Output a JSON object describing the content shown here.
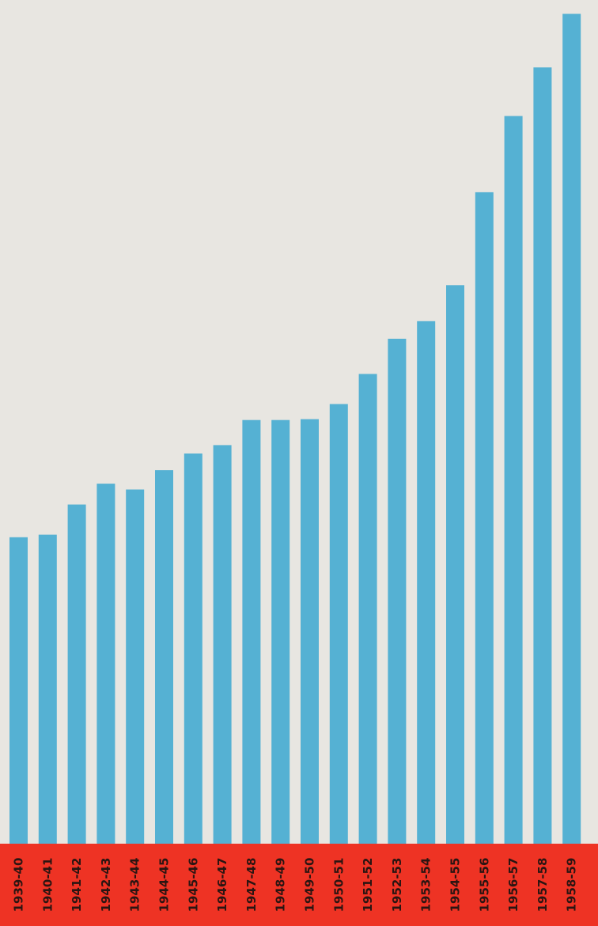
{
  "chart_data": {
    "type": "bar",
    "categories": [
      "1939-40",
      "1940-41",
      "1941-42",
      "1942-43",
      "1943-44",
      "1944-45",
      "1945-46",
      "1946-47",
      "1947-48",
      "1948-49",
      "1949-50",
      "1950-51",
      "1951-52",
      "1952-53",
      "1953-54",
      "1954-55",
      "1955-56",
      "1956-57",
      "1957-58",
      "1958-59"
    ],
    "values": [
      36.6,
      36.9,
      40.5,
      43.0,
      42.3,
      44.6,
      46.6,
      47.6,
      50.6,
      50.6,
      50.7,
      52.5,
      56.1,
      60.3,
      62.4,
      66.7,
      77.8,
      86.9,
      92.7,
      99.1
    ],
    "title": "",
    "xlabel": "",
    "ylabel": "",
    "ylim": [
      0,
      100
    ],
    "grid": false,
    "legend": "none"
  },
  "colors": {
    "background": "#e8e6e1",
    "bar": "#55b1d3",
    "label_band": "#ee3324",
    "label_text": "#2a1512"
  }
}
